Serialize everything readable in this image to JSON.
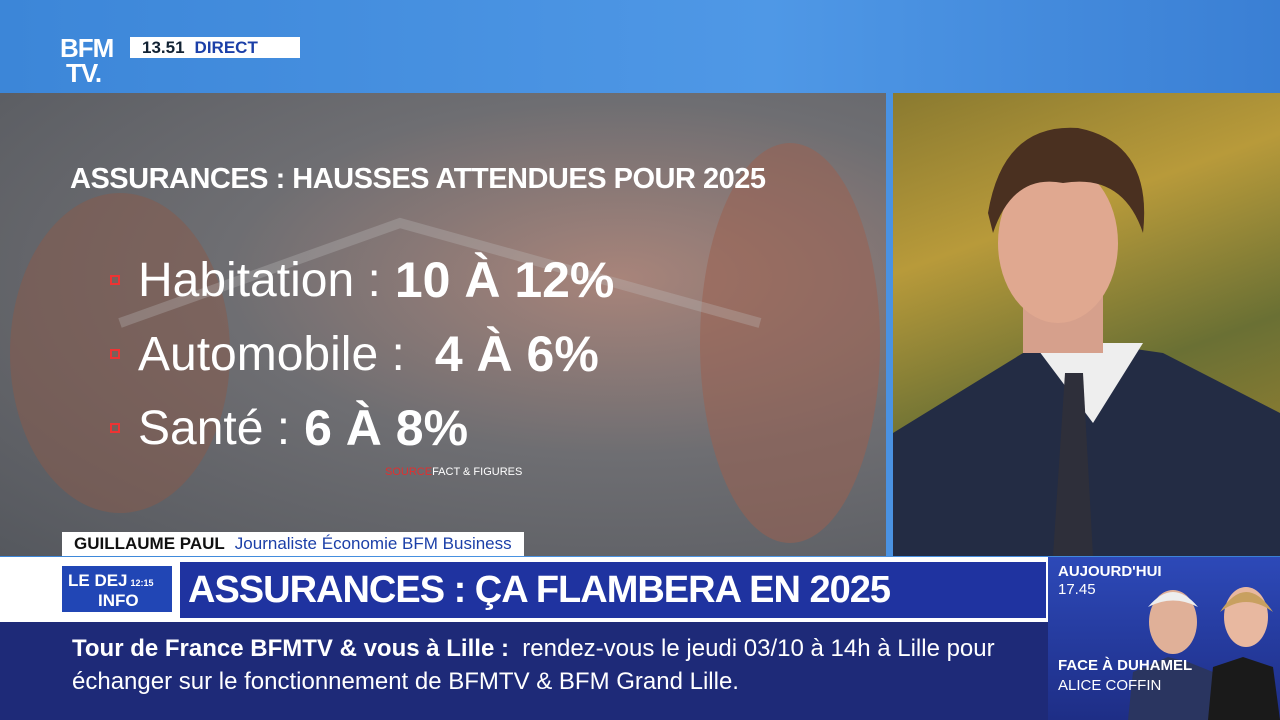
{
  "logo": {
    "line1": "BFM",
    "line2": "TV."
  },
  "clock": "13.51",
  "live": "DIRECT",
  "graphic": {
    "title": "ASSURANCES : HAUSSES ATTENDUES POUR 2025",
    "items": [
      {
        "label": "Habitation :",
        "value": "10 À 12%"
      },
      {
        "label": "Automobile :",
        "value": "4 À 6%"
      },
      {
        "label": "Santé :",
        "value": "6 À 8%"
      }
    ],
    "source_label": "SOURCE",
    "source": "FACT & FIGURES"
  },
  "lower_third": {
    "name": "GUILLAUME PAUL",
    "role": "Journaliste Économie BFM Business"
  },
  "show": {
    "line1": "LE DEJ",
    "time": "12:15",
    "line2": "INFO"
  },
  "headline": "ASSURANCES : ÇA FLAMBERA EN 2025",
  "ticker": {
    "lead": "Tour de France BFMTV & vous à Lille :",
    "text": "rendez-vous le jeudi 03/10 à 14h à Lille pour échanger sur le fonctionnement de BFMTV & BFM Grand Lille."
  },
  "next": {
    "label": "AUJOURD'HUI",
    "time": "17.45",
    "show": "FACE À DUHAMEL",
    "guest": "ALICE COFFIN"
  }
}
